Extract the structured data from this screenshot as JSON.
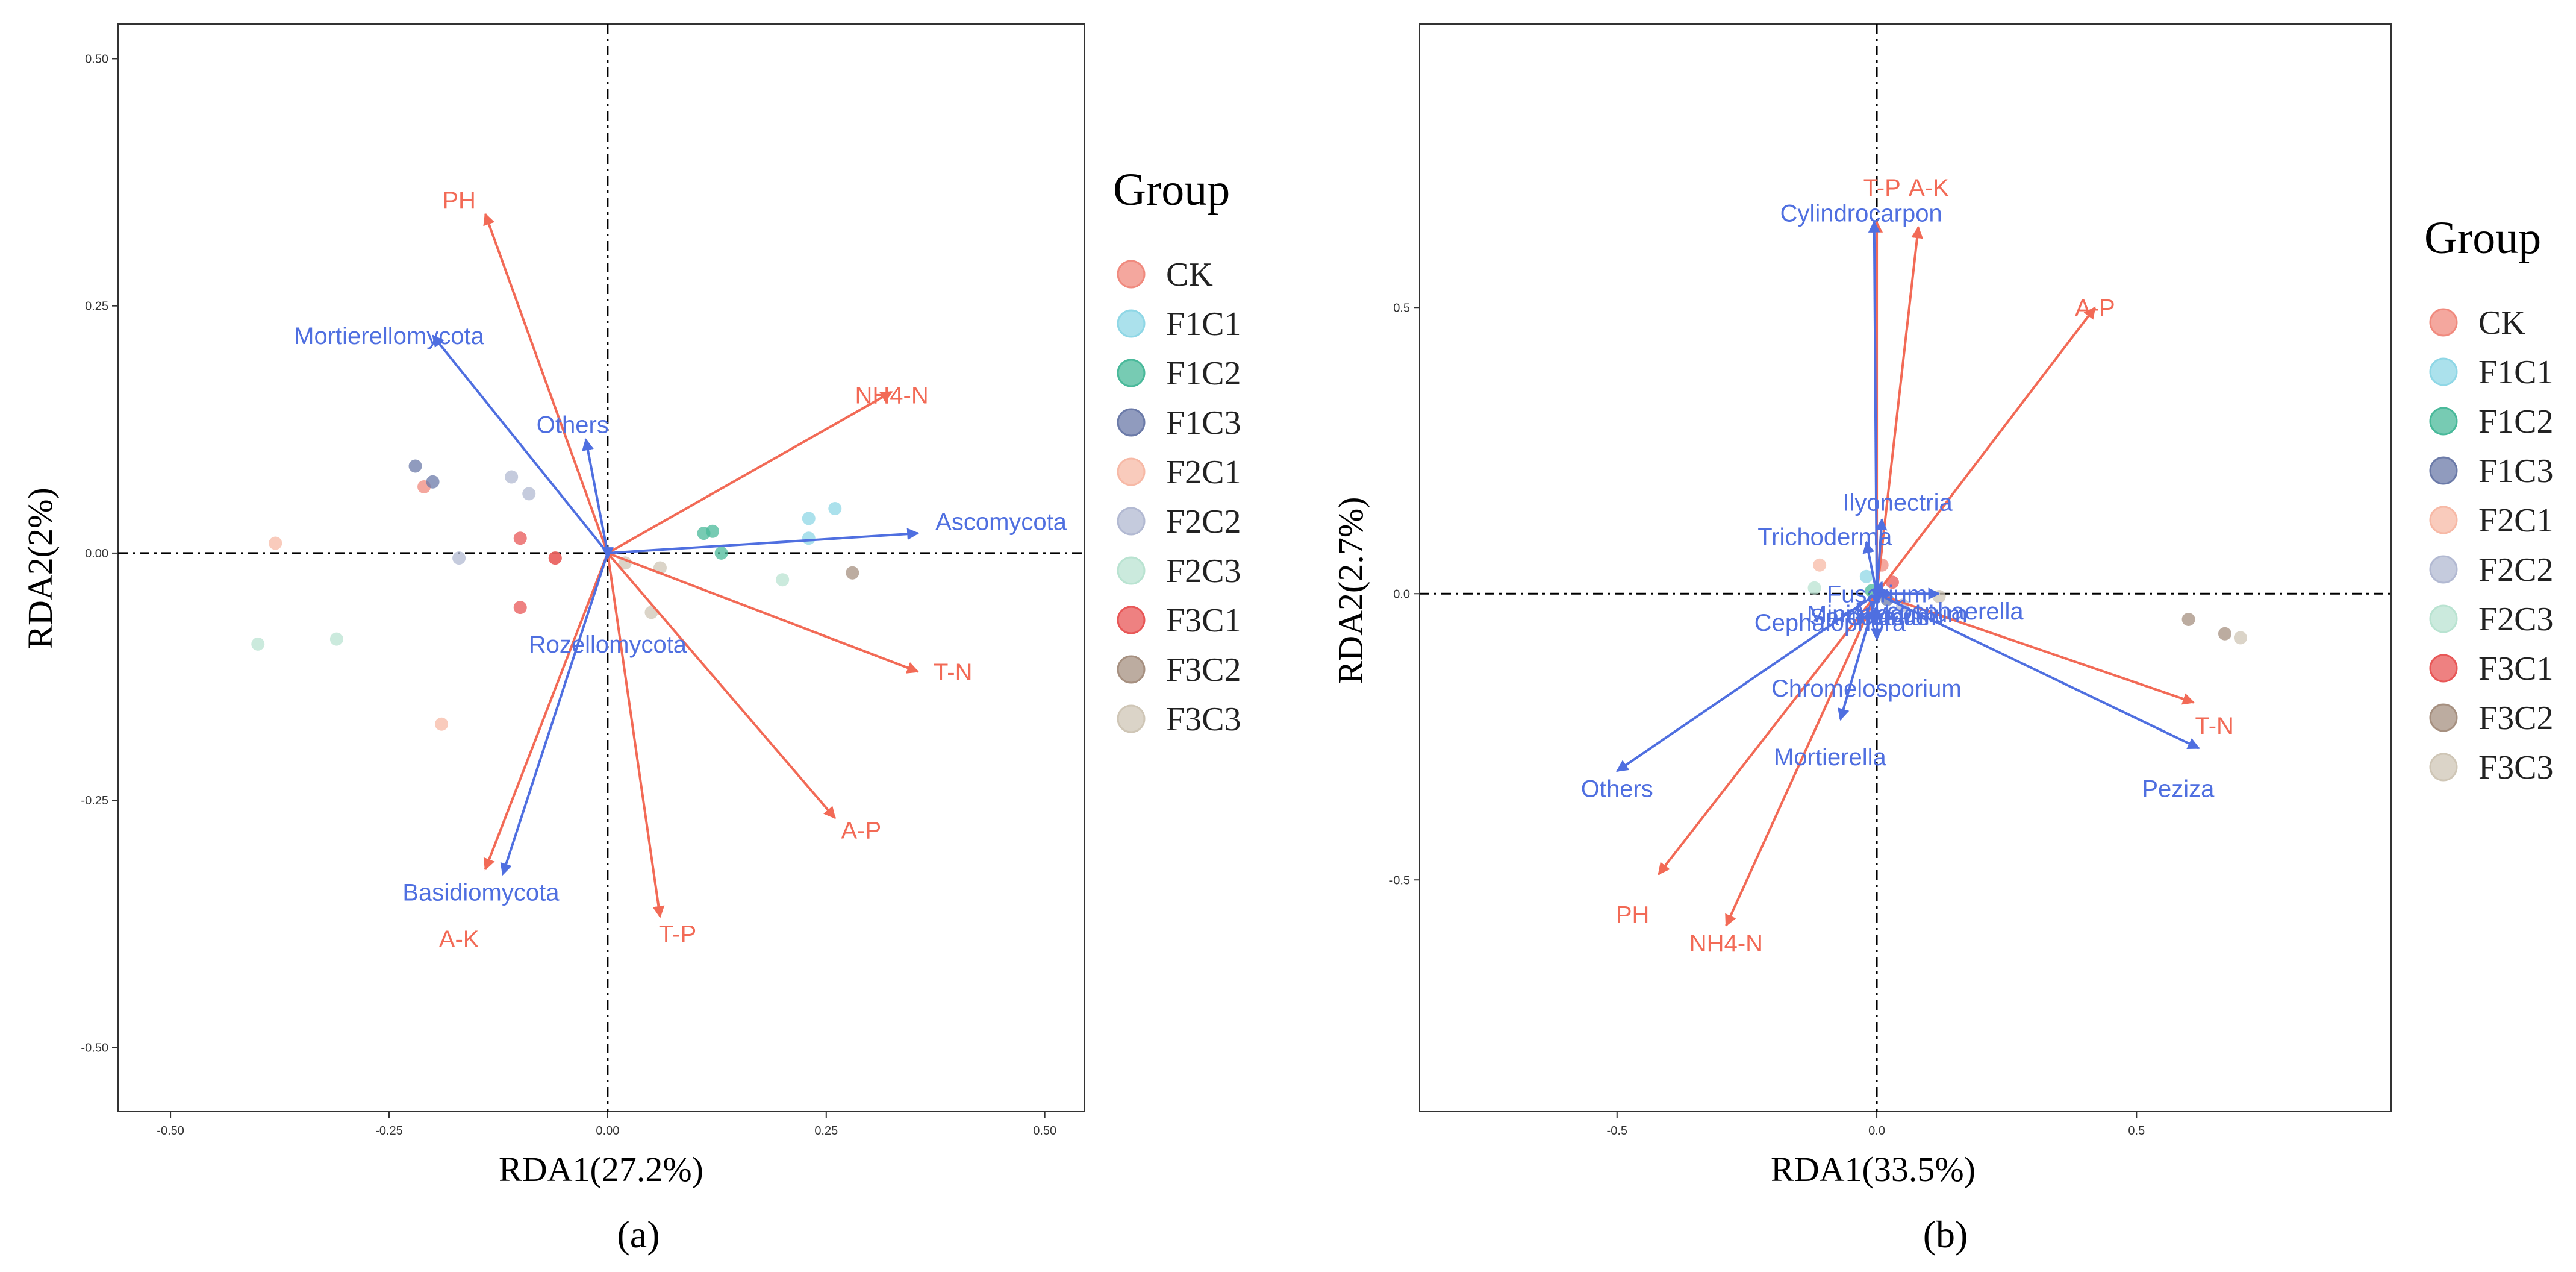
{
  "chart_data": [
    {
      "type": "scatter",
      "panel_label": "(a)",
      "xlabel": "RDA1(27.2%)",
      "ylabel": "RDA2(2%)",
      "xlim": [
        -0.56,
        0.545
      ],
      "ylim": [
        -0.565,
        0.535
      ],
      "xticks": [
        -0.5,
        -0.25,
        0,
        0.25,
        0.5
      ],
      "xtick_labels": [
        "-0.50",
        "-0.25",
        "0.00",
        "0.25",
        "0.50"
      ],
      "yticks": [
        -0.5,
        -0.25,
        0,
        0.25,
        0.5
      ],
      "ytick_labels": [
        "-0.50",
        "-0.25",
        "0.00",
        "0.25",
        "0.50"
      ],
      "env_vectors": [
        {
          "name": "PH",
          "x": -0.14,
          "y": 0.343,
          "lx": -0.17,
          "ly": 0.357
        },
        {
          "name": "NH4-N",
          "x": 0.325,
          "y": 0.163,
          "lx": 0.325,
          "ly": 0.16
        },
        {
          "name": "T-N",
          "x": 0.355,
          "y": -0.12,
          "lx": 0.395,
          "ly": -0.12
        },
        {
          "name": "A-P",
          "x": 0.26,
          "y": -0.268,
          "lx": 0.29,
          "ly": -0.28
        },
        {
          "name": "T-P",
          "x": 0.06,
          "y": -0.368,
          "lx": 0.08,
          "ly": -0.385
        },
        {
          "name": "A-K",
          "x": -0.14,
          "y": -0.32,
          "lx": -0.17,
          "ly": -0.39
        }
      ],
      "taxa_vectors": [
        {
          "name": "Mortierellomycota",
          "x": -0.2,
          "y": 0.22,
          "lx": -0.25,
          "ly": 0.22
        },
        {
          "name": "Others",
          "x": -0.025,
          "y": 0.115,
          "lx": -0.04,
          "ly": 0.13
        },
        {
          "name": "Ascomycota",
          "x": 0.355,
          "y": 0.02,
          "lx": 0.45,
          "ly": 0.032
        },
        {
          "name": "Rozellomycota",
          "x": 0,
          "y": -0.005,
          "lx": 0,
          "ly": -0.092
        },
        {
          "name": "Basidiomycota",
          "x": -0.12,
          "y": -0.325,
          "lx": -0.145,
          "ly": -0.343
        }
      ],
      "points": [
        {
          "group": "CK",
          "x": -0.21,
          "y": 0.067
        },
        {
          "group": "CK",
          "x": -0.06,
          "y": -0.005
        },
        {
          "group": "F1C1",
          "x": 0.23,
          "y": 0.035
        },
        {
          "group": "F1C1",
          "x": 0.26,
          "y": 0.045
        },
        {
          "group": "F1C1",
          "x": 0.23,
          "y": 0.015
        },
        {
          "group": "F1C2",
          "x": 0.11,
          "y": 0.02
        },
        {
          "group": "F1C2",
          "x": 0.12,
          "y": 0.022
        },
        {
          "group": "F1C2",
          "x": 0.13,
          "y": 0.0
        },
        {
          "group": "F1C3",
          "x": -0.22,
          "y": 0.088
        },
        {
          "group": "F1C3",
          "x": -0.2,
          "y": 0.072
        },
        {
          "group": "F2C1",
          "x": -0.38,
          "y": 0.01
        },
        {
          "group": "F2C1",
          "x": -0.19,
          "y": -0.173
        },
        {
          "group": "F2C2",
          "x": -0.11,
          "y": 0.077
        },
        {
          "group": "F2C2",
          "x": -0.09,
          "y": 0.06
        },
        {
          "group": "F2C2",
          "x": -0.17,
          "y": -0.005
        },
        {
          "group": "F2C3",
          "x": -0.4,
          "y": -0.092
        },
        {
          "group": "F2C3",
          "x": -0.31,
          "y": -0.087
        },
        {
          "group": "F2C3",
          "x": 0.2,
          "y": -0.027
        },
        {
          "group": "F3C1",
          "x": -0.1,
          "y": 0.015
        },
        {
          "group": "F3C1",
          "x": -0.1,
          "y": -0.055
        },
        {
          "group": "F3C1",
          "x": -0.06,
          "y": -0.005
        },
        {
          "group": "F3C2",
          "x": 0.28,
          "y": -0.02
        },
        {
          "group": "F3C3",
          "x": 0.05,
          "y": -0.06
        },
        {
          "group": "F3C3",
          "x": 0.06,
          "y": -0.015
        },
        {
          "group": "F3C3",
          "x": 0.02,
          "y": -0.01
        }
      ]
    },
    {
      "type": "scatter",
      "panel_label": "(b)",
      "xlabel": "RDA1(33.5%)",
      "ylabel": "RDA2(2.7%)",
      "xlim": [
        -0.88,
        0.99
      ],
      "ylim": [
        -0.905,
        0.995
      ],
      "xticks": [
        -0.5,
        0,
        0.5
      ],
      "xtick_labels": [
        "-0.5",
        "0.0",
        "0.5"
      ],
      "yticks": [
        -0.5,
        0,
        0.5
      ],
      "ytick_labels": [
        "-0.5",
        "0.0",
        "0.5"
      ],
      "env_vectors": [
        {
          "name": "T-P",
          "x": 0.0,
          "y": 0.65,
          "lx": 0.01,
          "ly": 0.71
        },
        {
          "name": "A-K",
          "x": 0.08,
          "y": 0.64,
          "lx": 0.1,
          "ly": 0.71
        },
        {
          "name": "A-P",
          "x": 0.42,
          "y": 0.5,
          "lx": 0.42,
          "ly": 0.5
        },
        {
          "name": "T-N",
          "x": 0.61,
          "y": -0.19,
          "lx": 0.65,
          "ly": -0.23
        },
        {
          "name": "PH",
          "x": -0.42,
          "y": -0.49,
          "lx": -0.47,
          "ly": -0.56
        },
        {
          "name": "NH4-N",
          "x": -0.29,
          "y": -0.58,
          "lx": -0.29,
          "ly": -0.61
        }
      ],
      "taxa_vectors": [
        {
          "name": "Cylindrocarpon",
          "x": -0.005,
          "y": 0.65,
          "lx": -0.03,
          "ly": 0.665
        },
        {
          "name": "Ilyonectria",
          "x": 0.01,
          "y": 0.13,
          "lx": 0.04,
          "ly": 0.16
        },
        {
          "name": "Trichoderma",
          "x": -0.02,
          "y": 0.09,
          "lx": -0.1,
          "ly": 0.1
        },
        {
          "name": "Fusarium",
          "x": 0.01,
          "y": 0.02,
          "lx": 0.0,
          "ly": 0.0
        },
        {
          "name": "Minimidochium",
          "x": 0.02,
          "y": 0.0,
          "lx": 0.02,
          "ly": -0.035
        },
        {
          "name": "Sarocladium",
          "x": 0.0,
          "y": -0.01,
          "lx": 0.0,
          "ly": -0.04
        },
        {
          "name": "Glomus",
          "x": 0.03,
          "y": 0.0,
          "lx": 0.02,
          "ly": -0.04
        },
        {
          "name": "Cephalophora",
          "x": 0.0,
          "y": -0.02,
          "lx": -0.09,
          "ly": -0.05
        },
        {
          "name": "Chromelosporium",
          "x": 0.0,
          "y": -0.08,
          "lx": -0.02,
          "ly": -0.165
        },
        {
          "name": "Mortierella",
          "x": -0.07,
          "y": -0.22,
          "lx": -0.09,
          "ly": -0.285
        },
        {
          "name": "Others",
          "x": -0.5,
          "y": -0.31,
          "lx": -0.5,
          "ly": -0.34
        },
        {
          "name": "Peziza",
          "x": 0.62,
          "y": -0.27,
          "lx": 0.58,
          "ly": -0.34
        },
        {
          "name": "Mycosphaerella",
          "x": 0.12,
          "y": 0.0,
          "lx": 0.12,
          "ly": -0.03
        }
      ],
      "points": [
        {
          "group": "CK",
          "x": 0.01,
          "y": 0.05
        },
        {
          "group": "F1C1",
          "x": -0.02,
          "y": 0.03
        },
        {
          "group": "F1C2",
          "x": -0.01,
          "y": 0.005
        },
        {
          "group": "F1C3",
          "x": 0.02,
          "y": -0.01
        },
        {
          "group": "F2C1",
          "x": -0.11,
          "y": 0.05
        },
        {
          "group": "F2C2",
          "x": 0.05,
          "y": -0.02
        },
        {
          "group": "F2C3",
          "x": -0.12,
          "y": 0.01
        },
        {
          "group": "F3C1",
          "x": 0.03,
          "y": 0.02
        },
        {
          "group": "F3C2",
          "x": 0.6,
          "y": -0.045
        },
        {
          "group": "F3C2",
          "x": 0.67,
          "y": -0.07
        },
        {
          "group": "F3C3",
          "x": 0.7,
          "y": -0.077
        },
        {
          "group": "F3C3",
          "x": 0.12,
          "y": -0.005
        }
      ]
    }
  ],
  "legend": {
    "title": "Group",
    "groups": [
      {
        "name": "CK",
        "color": "#f08a7e"
      },
      {
        "name": "F1C1",
        "color": "#8fd7e6"
      },
      {
        "name": "F1C2",
        "color": "#49b99a"
      },
      {
        "name": "F1C3",
        "color": "#6b7aa8"
      },
      {
        "name": "F2C1",
        "color": "#f7b9a6"
      },
      {
        "name": "F2C2",
        "color": "#b2b9d2"
      },
      {
        "name": "F2C3",
        "color": "#b9e3d1"
      },
      {
        "name": "F3C1",
        "color": "#e85757"
      },
      {
        "name": "F3C2",
        "color": "#a69080"
      },
      {
        "name": "F3C3",
        "color": "#cfc6b6"
      }
    ]
  },
  "colors": {
    "env_vector": "#f26a56",
    "taxa_vector": "#4f6fe0",
    "axis": "#333333"
  }
}
